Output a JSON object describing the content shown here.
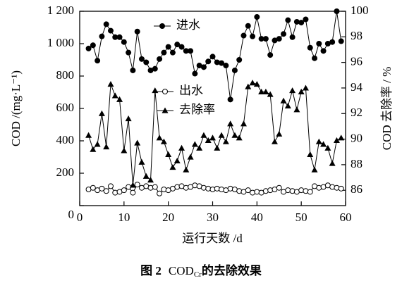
{
  "chart_data": {
    "type": "line",
    "caption": [
      "图 2",
      "COD",
      "Cr",
      "的去除效果"
    ],
    "xlabel": "运行天数 /d",
    "ylabel": "COD /(mg·L⁻¹)",
    "y2label": "COD 去除率 / %",
    "x": [
      2,
      3,
      4,
      5,
      6,
      7,
      8,
      9,
      10,
      11,
      12,
      13,
      14,
      15,
      16,
      17,
      18,
      19,
      20,
      21,
      22,
      23,
      24,
      25,
      26,
      27,
      28,
      29,
      30,
      31,
      32,
      33,
      34,
      35,
      36,
      37,
      38,
      39,
      40,
      41,
      42,
      43,
      44,
      45,
      46,
      47,
      48,
      49,
      50,
      51,
      52,
      53,
      54,
      55,
      56,
      57,
      58,
      59
    ],
    "series": [
      {
        "name": "进水",
        "color": "#000000",
        "marker": "filled-circle",
        "values": [
          970,
          990,
          895,
          1045,
          1120,
          1080,
          1040,
          1040,
          1010,
          945,
          835,
          1075,
          905,
          885,
          835,
          845,
          905,
          945,
          980,
          945,
          995,
          980,
          955,
          955,
          815,
          865,
          855,
          890,
          920,
          885,
          880,
          865,
          655,
          835,
          900,
          1050,
          1110,
          1045,
          1165,
          1030,
          1030,
          930,
          1020,
          1030,
          1060,
          1145,
          1040,
          1135,
          1130,
          1150,
          975,
          910,
          1000,
          955,
          1000,
          1010,
          1200,
          1015
        ]
      },
      {
        "name": "出水",
        "color": "#000000",
        "marker": "open-circle",
        "values": [
          100,
          110,
          95,
          105,
          90,
          120,
          80,
          85,
          95,
          115,
          80,
          130,
          110,
          120,
          110,
          115,
          75,
          100,
          95,
          105,
          115,
          120,
          110,
          115,
          125,
          120,
          110,
          105,
          100,
          105,
          100,
          95,
          105,
          100,
          90,
          85,
          95,
          80,
          85,
          80,
          90,
          95,
          100,
          110,
          85,
          95,
          90,
          85,
          95,
          90,
          85,
          120,
          110,
          115,
          125,
          115,
          110,
          105
        ]
      },
      {
        "name": "去除率",
        "color": "#000000",
        "marker": "triangle",
        "axis": "y2",
        "values": [
          90.3,
          89.2,
          89.6,
          92.0,
          89.4,
          94.3,
          93.4,
          93.1,
          89.1,
          91.6,
          86.4,
          89.7,
          88.2,
          87.1,
          86.8,
          93.8,
          90.1,
          89.8,
          88.8,
          87.8,
          88.3,
          89.3,
          87.6,
          88.6,
          89.6,
          89.3,
          90.3,
          89.9,
          90.1,
          89.3,
          90.3,
          89.8,
          91.2,
          90.3,
          90.1,
          91.2,
          94.1,
          94.4,
          94.3,
          93.7,
          93.7,
          93.5,
          89.8,
          90.4,
          93.0,
          92.6,
          93.8,
          92.3,
          93.7,
          94.0,
          88.8,
          87.6,
          89.8,
          89.6,
          89.3,
          88.1,
          89.9,
          90.1
        ]
      }
    ],
    "xlim": [
      0,
      60
    ],
    "xticks": [
      0,
      10,
      20,
      30,
      40,
      50,
      60
    ],
    "ylim": [
      0,
      1200
    ],
    "yticks": [
      0,
      200,
      400,
      600,
      800,
      {
        "value": 1000,
        "label": "1 000"
      },
      {
        "value": 1200,
        "label": "1 200"
      }
    ],
    "y2lim": [
      84.8,
      100
    ],
    "y2ticks": [
      86,
      88,
      90,
      92,
      94,
      96,
      98,
      100
    ]
  }
}
